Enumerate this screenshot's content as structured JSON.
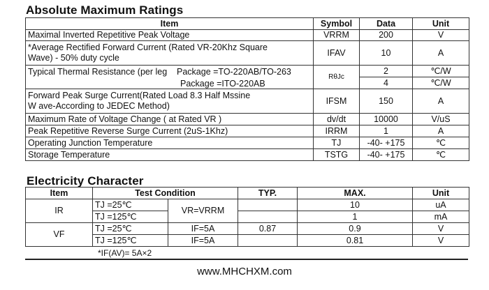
{
  "amr": {
    "title": "Absolute Maximum Ratings",
    "headers": [
      "Item",
      "Symbol",
      "Data",
      "Unit"
    ],
    "rows": [
      {
        "item": "Maximal Inverted Repetitive  Peak Voltage",
        "symbol": "VRRM",
        "data": "200",
        "unit": "V"
      },
      {
        "item": "*Average Rectified Forward Current (Rated VR-20Khz Square",
        "item2": "Wave) - 50% duty cycle",
        "symbol": "IFAV",
        "data": "10",
        "unit": "A"
      },
      {
        "item": "Typical Thermal Resistance (per leg",
        "pkg1": "Package =TO-220AB/TO-263",
        "pkg2": "Package =ITO-220AB",
        "symbol": "RθJc",
        "data1": "2",
        "unit1": "℃/W",
        "data2": "4",
        "unit2": "℃/W"
      },
      {
        "item": "Forward Peak Surge Current(Rated Load 8.3 Half Mssine",
        "item2": "W ave-According to JEDEC Method)",
        "symbol": "IFSM",
        "data": "150",
        "unit": "A"
      },
      {
        "item": "Maximum Rate of Voltage Change ( at Rated VR )",
        "symbol": "dv/dt",
        "data": "10000",
        "unit": "V/uS"
      },
      {
        "item": "Peak Repetitive Reverse Surge Current (2uS-1Khz)",
        "symbol": "IRRM",
        "data": "1",
        "unit": "A"
      },
      {
        "item": "Operating Junction Temperature",
        "symbol": "TJ",
        "data": "-40- +175",
        "unit": "℃"
      },
      {
        "item": "Storage Temperature",
        "symbol": "TSTG",
        "data": "-40- +175",
        "unit": "℃"
      }
    ]
  },
  "ec": {
    "title": "Electricity Character",
    "headers": {
      "item": "Item",
      "cond": "Test  Condition",
      "typ": "TYP.",
      "max": "MAX.",
      "unit": "Unit"
    },
    "ir": {
      "label": "IR",
      "cond2": "VR=VRRM",
      "rows": [
        {
          "tj": "TJ =25℃",
          "typ": "",
          "max": "10",
          "unit": "uA"
        },
        {
          "tj": "TJ =125℃",
          "typ": "",
          "max": "1",
          "unit": "mA"
        }
      ]
    },
    "vf": {
      "label": "VF",
      "rows": [
        {
          "tj": "TJ =25℃",
          "cond2": "IF=5A",
          "typ": "0.87",
          "max": "0.9",
          "unit": "V"
        },
        {
          "tj": "TJ =125℃",
          "cond2": "IF=5A",
          "typ": "",
          "max": "0.81",
          "unit": "V"
        }
      ]
    },
    "footnote": "*IF(AV)= 5A×2"
  },
  "footer": {
    "url": "www.MHCHXM.com"
  }
}
